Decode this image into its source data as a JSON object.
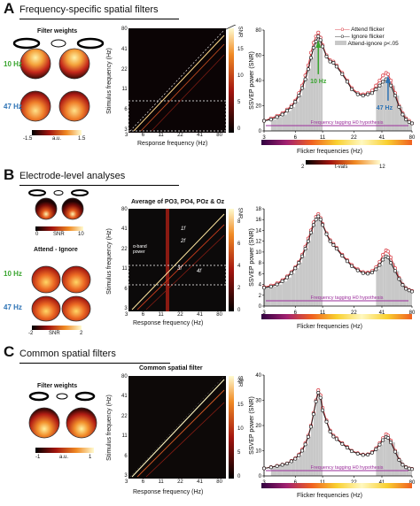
{
  "panels": [
    {
      "letter": "A",
      "title": "Frequency-specific spatial filters",
      "topo_title": "Filter weights",
      "topo_labels": [
        "10 Hz",
        "47 Hz"
      ],
      "topo_scale": {
        "min": "-1.5",
        "unit": "a.u.",
        "max": "1.5"
      },
      "matrix": {
        "xlabel": "Response frequency (Hz)",
        "ylabel": "Stimulus frequency (Hz)",
        "xticks": [
          "3",
          "6",
          "11",
          "22",
          "41",
          "80"
        ],
        "yticks": [
          "3",
          "6",
          "11",
          "22",
          "41",
          "80"
        ],
        "cbar_label": "SNR",
        "cbar_ticks": [
          "0",
          "5",
          "10",
          "15"
        ]
      },
      "tval_scale": {
        "min": "2",
        "label": "t-vals",
        "max": "12"
      }
    },
    {
      "letter": "B",
      "title": "Electrode-level analyses",
      "topo_scale": {
        "min": "0",
        "unit": "SNR",
        "max": "10"
      },
      "topo_subtitle": "Attend - Ignore",
      "topo_labels": [
        "10 Hz",
        "47 Hz"
      ],
      "topo_scale2": {
        "min": "-2",
        "unit": "SNR",
        "max": "2"
      },
      "matrix": {
        "title": "Average of PO3, PO4, POz & Oz",
        "xlabel": "Response frequency (Hz)",
        "ylabel": "Stimulus frequency (Hz)",
        "xticks": [
          "3",
          "6",
          "11",
          "22",
          "41",
          "80"
        ],
        "yticks": [
          "3",
          "6",
          "11",
          "22",
          "41",
          "80"
        ],
        "cbar_label": "SNR",
        "cbar_ticks": [
          "0",
          "2",
          "4",
          "6",
          "8"
        ],
        "annotations": [
          "α-band power",
          "1f",
          "2f",
          "3f",
          "4f"
        ]
      }
    },
    {
      "letter": "C",
      "title": "Common spatial filters",
      "topo_title": "Filter weights",
      "topo_scale": {
        "min": "-1",
        "unit": "a.u.",
        "max": "1"
      },
      "matrix": {
        "title": "Common spatial filter",
        "xlabel": "Response frequency (Hz)",
        "ylabel": "Stimulus frequency (Hz)",
        "xticks": [
          "3",
          "6",
          "11",
          "22",
          "41",
          "80"
        ],
        "yticks": [
          "3",
          "6",
          "11",
          "22",
          "41",
          "80"
        ],
        "cbar_label": "SNR",
        "cbar_ticks": [
          "0",
          "5",
          "10",
          "15",
          "20"
        ]
      }
    }
  ],
  "legend": {
    "attend": "Attend flicker",
    "ignore": "Ignore flicker",
    "diff": "Attend-ignore p<.05"
  },
  "colors": {
    "attend": "#d9363e",
    "ignore": "#222222",
    "shade": "#c8c8c8",
    "h0": "#9b2d9b"
  },
  "chart_data": [
    {
      "type": "line",
      "panel": "A",
      "xlabel": "Flicker frequencies (Hz)",
      "ylabel": "SSVEP power (SNR)",
      "xticks": [
        "3",
        "6",
        "11",
        "22",
        "41",
        "80"
      ],
      "yticks": [
        "0",
        "20",
        "40",
        "60",
        "80"
      ],
      "ylim": [
        0,
        80
      ],
      "h0_label": "Frequency tagging H0 hypothesis",
      "annotations": [
        "10 Hz",
        "47 Hz"
      ],
      "x": [
        3,
        3.5,
        4,
        4.5,
        5,
        5.5,
        6,
        6.5,
        7,
        7.5,
        8,
        8.5,
        9,
        9.5,
        10,
        10.5,
        11,
        12,
        13,
        14,
        15,
        17,
        19,
        21,
        24,
        27,
        30,
        33,
        36,
        39,
        42,
        45,
        47,
        50,
        55,
        60,
        65,
        70,
        75,
        80
      ],
      "series": [
        {
          "name": "Attend flicker",
          "values": [
            8,
            10,
            12,
            14,
            17,
            20,
            24,
            30,
            36,
            44,
            52,
            62,
            70,
            75,
            78,
            74,
            68,
            60,
            56,
            55,
            52,
            46,
            40,
            34,
            30,
            29,
            30,
            32,
            36,
            40,
            44,
            46,
            45,
            40,
            30,
            20,
            14,
            10,
            8,
            6
          ]
        },
        {
          "name": "Ignore flicker",
          "values": [
            8,
            9,
            11,
            13,
            16,
            19,
            23,
            28,
            34,
            41,
            49,
            58,
            66,
            71,
            75,
            72,
            67,
            59,
            55,
            54,
            51,
            45,
            39,
            33,
            29,
            28,
            29,
            30,
            33,
            36,
            39,
            41,
            40,
            36,
            28,
            19,
            13,
            9,
            7,
            6
          ]
        }
      ]
    },
    {
      "type": "line",
      "panel": "B",
      "xlabel": "Flicker frequencies (Hz)",
      "ylabel": "SSVEP power (SNR)",
      "xticks": [
        "3",
        "6",
        "11",
        "22",
        "41",
        "80"
      ],
      "yticks": [
        "0",
        "2",
        "4",
        "6",
        "8",
        "10",
        "12",
        "14",
        "16",
        "18"
      ],
      "ylim": [
        0,
        18
      ],
      "h0_label": "Frequency tagging H0 hypothesis",
      "x": [
        3,
        3.5,
        4,
        4.5,
        5,
        5.5,
        6,
        6.5,
        7,
        7.5,
        8,
        8.5,
        9,
        9.5,
        10,
        10.5,
        11,
        12,
        13,
        14,
        15,
        17,
        19,
        21,
        24,
        27,
        30,
        33,
        36,
        39,
        42,
        45,
        47,
        50,
        55,
        60,
        65,
        70,
        75,
        80
      ],
      "series": [
        {
          "name": "Attend flicker",
          "values": [
            3.5,
            3.8,
            4.2,
            4.8,
            5.5,
            6.3,
            7.2,
            8.2,
            9.5,
            11,
            12.5,
            14,
            15.5,
            16.5,
            17,
            16.3,
            15.2,
            13.5,
            12.2,
            11.5,
            10.8,
            9.5,
            8.5,
            7.6,
            6.8,
            6.3,
            6.2,
            6.5,
            7.2,
            8.2,
            9.5,
            10.3,
            10.1,
            9,
            7,
            5.2,
            4,
            3.3,
            3,
            2.8
          ]
        },
        {
          "name": "Ignore flicker",
          "values": [
            3.4,
            3.6,
            4,
            4.6,
            5.3,
            6.1,
            7,
            8,
            9.2,
            10.6,
            12,
            13.6,
            15,
            16,
            16.6,
            16,
            15,
            13.3,
            12,
            11.3,
            10.6,
            9.3,
            8.3,
            7.4,
            6.6,
            6.1,
            6,
            6.2,
            6.8,
            7.6,
            8.6,
            9.2,
            9,
            8,
            6.5,
            5,
            3.9,
            3.2,
            2.9,
            2.7
          ]
        }
      ]
    },
    {
      "type": "line",
      "panel": "C",
      "xlabel": "Flicker frequencies (Hz)",
      "ylabel": "SSVEP power (SNR)",
      "xticks": [
        "3",
        "6",
        "11",
        "22",
        "41",
        "80"
      ],
      "yticks": [
        "0",
        "10",
        "20",
        "30",
        "40"
      ],
      "ylim": [
        0,
        40
      ],
      "h0_label": "Frequency tagging H0 hypothesis",
      "x": [
        3,
        3.5,
        4,
        4.5,
        5,
        5.5,
        6,
        6.5,
        7,
        7.5,
        8,
        8.5,
        9,
        9.5,
        10,
        10.5,
        11,
        12,
        13,
        14,
        15,
        17,
        19,
        21,
        24,
        27,
        30,
        33,
        36,
        39,
        42,
        45,
        47,
        50,
        55,
        60,
        65,
        70,
        75,
        80
      ],
      "series": [
        {
          "name": "Attend flicker",
          "values": [
            3,
            3.5,
            4,
            4.5,
            5,
            6,
            7,
            8.5,
            10.5,
            13,
            16,
            20,
            25,
            30,
            34,
            32,
            27,
            22,
            18,
            16,
            15,
            13,
            11.5,
            10,
            9,
            8.5,
            8.6,
            9.5,
            11,
            13,
            15,
            16.5,
            16,
            14,
            10,
            6.5,
            4.5,
            3.5,
            3,
            2.8
          ]
        },
        {
          "name": "Ignore flicker",
          "values": [
            3,
            3.4,
            3.9,
            4.4,
            4.9,
            5.8,
            6.8,
            8.2,
            10,
            12.5,
            15.5,
            19.5,
            24.5,
            29.5,
            33,
            31,
            26,
            21.5,
            17.6,
            15.6,
            14.6,
            12.7,
            11.2,
            9.8,
            8.8,
            8.3,
            8.4,
            9.2,
            10.6,
            12.4,
            14.2,
            15.5,
            15.1,
            13.3,
            9.6,
            6.3,
            4.4,
            3.4,
            2.9,
            2.7
          ]
        }
      ]
    }
  ]
}
